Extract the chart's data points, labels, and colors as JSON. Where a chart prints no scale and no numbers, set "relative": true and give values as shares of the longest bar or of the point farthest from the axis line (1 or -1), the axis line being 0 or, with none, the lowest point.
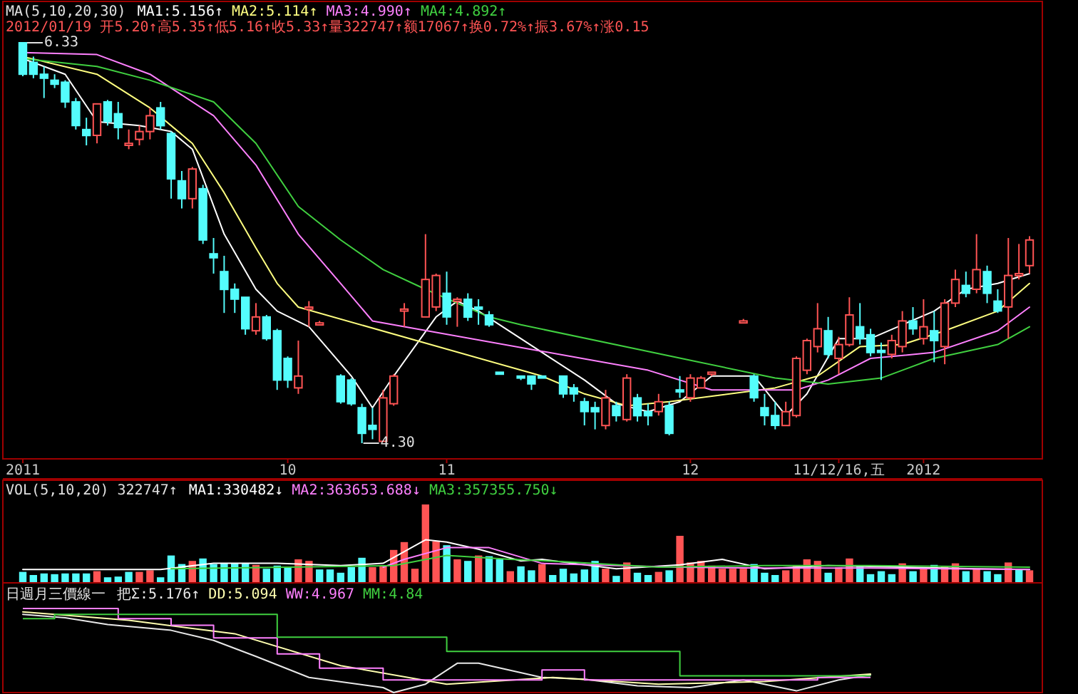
{
  "chart_data": [
    {
      "type": "candlestick",
      "subtitle": "2012/01/19 开5.20↑高5.35↑低5.16↑收5.33↑量322747↑额17067↑换0.72%↑振3.67%↑涨0.15",
      "legend_title": "MA(5,10,20,30)",
      "legend": "top left",
      "tick_labels": "x",
      "categories": [
        "2011",
        null,
        null,
        null,
        null,
        null,
        null,
        null,
        null,
        null,
        null,
        null,
        null,
        null,
        null,
        null,
        null,
        null,
        null,
        null,
        null,
        null,
        null,
        null,
        null,
        "10",
        null,
        null,
        null,
        null,
        null,
        null,
        null,
        null,
        null,
        null,
        null,
        null,
        null,
        null,
        "11",
        null,
        null,
        null,
        null,
        null,
        null,
        null,
        null,
        null,
        null,
        null,
        null,
        null,
        null,
        null,
        null,
        null,
        null,
        null,
        null,
        null,
        null,
        "12",
        null,
        null,
        null,
        null,
        null,
        null,
        null,
        null,
        null,
        null,
        null,
        null,
        null,
        "11/12/16,五",
        null,
        null,
        null,
        null,
        null,
        null,
        null,
        "2012",
        null,
        null,
        null,
        null,
        null,
        null,
        null,
        null,
        null,
        null
      ],
      "ohlc": [
        [
          6.33,
          6.33,
          6.16,
          6.17
        ],
        [
          6.23,
          6.26,
          6.15,
          6.17
        ],
        [
          6.17,
          6.21,
          6.05,
          6.15
        ],
        [
          6.14,
          6.17,
          6.1,
          6.12
        ],
        [
          6.13,
          6.14,
          6.0,
          6.03
        ],
        [
          6.03,
          6.05,
          5.89,
          5.91
        ],
        [
          5.89,
          5.95,
          5.81,
          5.86
        ],
        [
          5.86,
          6.02,
          5.82,
          6.02
        ],
        [
          6.03,
          6.04,
          5.91,
          5.93
        ],
        [
          5.97,
          6.03,
          5.84,
          5.9
        ],
        [
          5.81,
          5.89,
          5.79,
          5.82
        ],
        [
          5.84,
          5.91,
          5.81,
          5.88
        ],
        [
          5.88,
          6.0,
          5.84,
          5.96
        ],
        [
          6.0,
          6.03,
          5.89,
          5.91
        ],
        [
          5.87,
          5.88,
          5.54,
          5.64
        ],
        [
          5.63,
          5.68,
          5.49,
          5.54
        ],
        [
          5.54,
          5.7,
          5.49,
          5.69
        ],
        [
          5.59,
          5.61,
          5.31,
          5.33
        ],
        [
          5.26,
          5.34,
          5.16,
          5.24
        ],
        [
          5.17,
          5.25,
          4.96,
          5.08
        ],
        [
          5.08,
          5.11,
          4.96,
          5.03
        ],
        [
          5.04,
          5.04,
          4.85,
          4.88
        ],
        [
          4.87,
          5.01,
          4.85,
          4.94
        ],
        [
          4.94,
          4.95,
          4.82,
          4.83
        ],
        [
          4.87,
          4.88,
          4.57,
          4.62
        ],
        [
          4.73,
          4.74,
          4.58,
          4.62
        ],
        [
          4.58,
          4.82,
          4.55,
          4.64
        ],
        [
          4.98,
          5.02,
          4.89,
          4.99
        ],
        [
          4.9,
          4.92,
          4.9,
          4.91
        ],
        null,
        [
          4.64,
          4.65,
          4.5,
          4.51
        ],
        [
          4.62,
          4.63,
          4.49,
          4.5
        ],
        [
          4.48,
          4.5,
          4.3,
          4.35
        ],
        [
          4.39,
          4.48,
          4.32,
          4.37
        ],
        [
          4.31,
          4.57,
          4.31,
          4.53
        ],
        [
          4.5,
          4.65,
          4.49,
          4.64
        ],
        [
          4.97,
          5.01,
          4.89,
          4.98
        ],
        null,
        [
          4.94,
          5.36,
          4.94,
          5.13
        ],
        [
          4.99,
          5.16,
          4.97,
          5.15
        ],
        [
          5.06,
          5.17,
          4.9,
          4.94
        ],
        [
          5.02,
          5.04,
          4.89,
          5.03
        ],
        [
          5.03,
          5.06,
          4.92,
          4.94
        ],
        [
          4.99,
          5.03,
          4.9,
          4.98
        ],
        [
          4.95,
          4.97,
          4.89,
          4.9
        ],
        [
          4.66,
          4.66,
          4.65,
          4.65
        ],
        null,
        [
          4.64,
          4.64,
          4.62,
          4.63
        ],
        [
          4.64,
          4.64,
          4.57,
          4.6
        ],
        [
          4.64,
          4.64,
          4.63,
          4.63
        ],
        null,
        [
          4.64,
          4.64,
          4.53,
          4.55
        ],
        [
          4.58,
          4.6,
          4.51,
          4.55
        ],
        [
          4.51,
          4.53,
          4.39,
          4.46
        ],
        [
          4.48,
          4.51,
          4.37,
          4.46
        ],
        [
          4.39,
          4.57,
          4.37,
          4.53
        ],
        [
          4.49,
          4.51,
          4.41,
          4.44
        ],
        [
          4.42,
          4.65,
          4.41,
          4.63
        ],
        [
          4.53,
          4.55,
          4.41,
          4.44
        ],
        [
          4.46,
          4.5,
          4.39,
          4.44
        ],
        [
          4.46,
          4.55,
          4.44,
          4.51
        ],
        [
          4.49,
          4.51,
          4.34,
          4.35
        ],
        [
          4.57,
          4.64,
          4.53,
          4.56
        ],
        [
          4.53,
          4.65,
          4.51,
          4.63
        ],
        [
          4.58,
          4.64,
          4.58,
          4.63
        ],
        [
          4.65,
          4.66,
          4.64,
          4.66
        ],
        null,
        null,
        [
          4.91,
          4.93,
          4.91,
          4.92
        ],
        [
          4.64,
          4.65,
          4.51,
          4.53
        ],
        [
          4.48,
          4.55,
          4.39,
          4.44
        ],
        [
          4.44,
          4.51,
          4.37,
          4.39
        ],
        [
          4.39,
          4.51,
          4.39,
          4.46
        ],
        [
          4.44,
          4.74,
          4.43,
          4.73
        ],
        [
          4.67,
          4.83,
          4.65,
          4.82
        ],
        [
          4.79,
          5.01,
          4.76,
          4.88
        ],
        [
          4.87,
          4.94,
          4.73,
          4.75
        ],
        [
          4.73,
          4.84,
          4.65,
          4.8
        ],
        [
          4.8,
          5.04,
          4.79,
          4.95
        ],
        [
          4.89,
          5.01,
          4.8,
          4.83
        ],
        [
          4.85,
          4.88,
          4.74,
          4.76
        ],
        [
          4.77,
          4.81,
          4.62,
          4.76
        ],
        [
          4.75,
          4.85,
          4.73,
          4.82
        ],
        [
          4.79,
          4.97,
          4.76,
          4.92
        ],
        [
          4.92,
          4.99,
          4.85,
          4.88
        ],
        [
          4.83,
          5.03,
          4.8,
          4.89
        ],
        [
          4.87,
          4.97,
          4.71,
          4.82
        ],
        [
          4.79,
          5.03,
          4.7,
          5.01
        ],
        [
          5.01,
          5.18,
          4.99,
          5.13
        ],
        [
          5.1,
          5.17,
          5.04,
          5.06
        ],
        [
          5.08,
          5.36,
          5.06,
          5.18
        ],
        [
          5.17,
          5.2,
          5.01,
          5.06
        ],
        [
          5.02,
          5.08,
          4.96,
          4.97
        ],
        [
          4.99,
          5.34,
          4.83,
          5.15
        ],
        [
          5.15,
          5.31,
          5.13,
          5.16
        ],
        [
          5.2,
          5.35,
          5.16,
          5.33
        ]
      ],
      "colors": [
        "#54fcfc",
        "#54fcfc",
        "#54fcfc",
        "#54fcfc",
        "#54fcfc",
        "#54fcfc",
        "#54fcfc",
        "#ff5454",
        "#54fcfc",
        "#54fcfc",
        "#ff5454",
        "#ff5454",
        "#ff5454",
        "#54fcfc",
        "#54fcfc",
        "#54fcfc",
        "#ff5454",
        "#54fcfc",
        "#54fcfc",
        "#54fcfc",
        "#54fcfc",
        "#54fcfc",
        "#ff5454",
        "#54fcfc",
        "#54fcfc",
        "#54fcfc",
        "#ff5454",
        "#ff5454",
        "#ff5454",
        null,
        "#54fcfc",
        "#54fcfc",
        "#54fcfc",
        "#54fcfc",
        "#ff5454",
        "#ff5454",
        "#ff5454",
        null,
        "#ff5454",
        "#ff5454",
        "#54fcfc",
        "#ff5454",
        "#54fcfc",
        "#54fcfc",
        "#54fcfc",
        "#54fcfc",
        null,
        "#54fcfc",
        "#54fcfc",
        "#54fcfc",
        null,
        "#54fcfc",
        "#54fcfc",
        "#54fcfc",
        "#54fcfc",
        "#ff5454",
        "#54fcfc",
        "#ff5454",
        "#54fcfc",
        "#54fcfc",
        "#ff5454",
        "#54fcfc",
        "#54fcfc",
        "#ff5454",
        "#ff5454",
        "#ff5454",
        null,
        null,
        "#ff5454",
        "#54fcfc",
        "#54fcfc",
        "#54fcfc",
        "#ff5454",
        "#ff5454",
        "#ff5454",
        "#ff5454",
        "#54fcfc",
        "#ff5454",
        "#ff5454",
        "#54fcfc",
        "#54fcfc",
        "#54fcfc",
        "#ff5454",
        "#ff5454",
        "#54fcfc",
        "#ff5454",
        "#54fcfc",
        "#ff5454",
        "#ff5454",
        "#54fcfc",
        "#ff5454",
        "#54fcfc",
        "#54fcfc",
        "#ff5454",
        "#ff5454",
        "#ff5454"
      ],
      "series": [
        {
          "type": "line",
          "name": "MA1:5.156↑",
          "color": "#ffffff",
          "values": [
            6.25,
            null,
            null,
            null,
            6.17,
            null,
            null,
            5.93,
            null,
            null,
            null,
            5.91,
            null,
            null,
            5.88,
            null,
            5.79,
            null,
            null,
            5.36,
            null,
            null,
            5.08,
            null,
            4.97,
            null,
            null,
            4.89,
            null,
            null,
            null,
            4.64,
            null,
            4.48,
            null,
            4.64,
            null,
            null,
            null,
            4.94,
            null,
            5.02,
            null,
            4.97,
            null,
            4.9,
            null,
            null,
            null,
            null,
            null,
            null,
            null,
            4.62,
            null,
            null,
            4.5,
            null,
            null,
            4.46,
            null,
            null,
            4.51,
            null,
            null,
            4.64,
            null,
            null,
            null,
            4.64,
            null,
            null,
            4.44,
            null,
            4.55,
            null,
            null,
            4.83,
            null,
            null,
            4.83,
            null,
            null,
            4.9,
            null,
            null,
            4.97,
            null,
            null,
            5.08,
            null,
            null,
            5.11,
            null,
            null,
            5.16
          ]
        },
        {
          "type": "line",
          "name": "MA2:5.114↑",
          "color": "#ffff80",
          "values": [
            6.26,
            null,
            null,
            null,
            null,
            null,
            null,
            6.17,
            null,
            null,
            null,
            null,
            6.0,
            null,
            null,
            null,
            5.82,
            null,
            null,
            5.57,
            null,
            null,
            5.29,
            null,
            5.11,
            null,
            4.99,
            null,
            null,
            null,
            null,
            null,
            null,
            null,
            null,
            null,
            null,
            null,
            null,
            null,
            null,
            null,
            null,
            null,
            null,
            null,
            null,
            null,
            null,
            4.64,
            null,
            null,
            null,
            4.55,
            null,
            null,
            null,
            4.49,
            null,
            null,
            null,
            4.51,
            null,
            null,
            null,
            null,
            null,
            null,
            null,
            null,
            null,
            4.58,
            null,
            null,
            null,
            4.64,
            null,
            null,
            null,
            4.79,
            null,
            null,
            null,
            4.8,
            null,
            null,
            null,
            4.87,
            null,
            null,
            null,
            null,
            4.97,
            null,
            null,
            5.11
          ]
        },
        {
          "type": "line",
          "name": "MA3:4.990↑",
          "color": "#ff80ff",
          "values": [
            6.28,
            null,
            null,
            null,
            null,
            null,
            null,
            6.27,
            null,
            null,
            null,
            null,
            6.17,
            null,
            null,
            null,
            null,
            null,
            5.96,
            null,
            null,
            null,
            5.71,
            null,
            null,
            null,
            5.36,
            null,
            null,
            null,
            5.11,
            null,
            null,
            4.92,
            null,
            null,
            null,
            null,
            null,
            null,
            null,
            null,
            null,
            null,
            null,
            null,
            null,
            null,
            null,
            null,
            null,
            null,
            null,
            null,
            null,
            null,
            null,
            null,
            null,
            4.67,
            null,
            null,
            null,
            null,
            null,
            4.57,
            null,
            null,
            null,
            4.57,
            null,
            null,
            null,
            4.57,
            null,
            null,
            4.62,
            null,
            null,
            null,
            4.73,
            null,
            null,
            null,
            null,
            null,
            4.76,
            null,
            null,
            null,
            null,
            null,
            4.87,
            null,
            null,
            4.99
          ]
        },
        {
          "type": "line",
          "name": "MA4:4.892↑",
          "color": "#40d040",
          "values": [
            6.25,
            null,
            null,
            null,
            null,
            null,
            null,
            6.21,
            null,
            null,
            null,
            null,
            6.14,
            null,
            null,
            null,
            null,
            null,
            6.03,
            null,
            null,
            null,
            5.82,
            null,
            null,
            null,
            5.5,
            null,
            null,
            null,
            5.33,
            null,
            null,
            null,
            5.18,
            null,
            null,
            null,
            5.08,
            null,
            null,
            null,
            null,
            null,
            4.94,
            null,
            null,
            4.9,
            null,
            null,
            null,
            null,
            null,
            null,
            null,
            null,
            null,
            null,
            null,
            null,
            null,
            null,
            null,
            null,
            null,
            null,
            null,
            null,
            null,
            null,
            null,
            4.63,
            null,
            null,
            null,
            null,
            4.6,
            null,
            null,
            null,
            null,
            4.63,
            null,
            null,
            null,
            null,
            4.73,
            null,
            null,
            null,
            null,
            null,
            4.8,
            null,
            null,
            4.89
          ]
        }
      ],
      "annotations": [
        "6.33",
        "4.30"
      ]
    },
    {
      "type": "bar",
      "relative": true,
      "legend_title": "VOL(5,10,20) 322747↑",
      "legend": "top left",
      "tick_labels": false,
      "categories": [
        null,
        null,
        null,
        null,
        null,
        null,
        null,
        null,
        null,
        null,
        null,
        null,
        null,
        null,
        null,
        null,
        null,
        null,
        null,
        null,
        null,
        null,
        null,
        null,
        null,
        null,
        null,
        null,
        null,
        null,
        null,
        null,
        null,
        null,
        null,
        null,
        null,
        null,
        null,
        null,
        null,
        null,
        null,
        null,
        null,
        null,
        null,
        null,
        null,
        null,
        null,
        null,
        null,
        null,
        null,
        null,
        null,
        null,
        null,
        null,
        null,
        null,
        null,
        null,
        null,
        null,
        null,
        null,
        null,
        null,
        null,
        null,
        null,
        null,
        null,
        null,
        null,
        null,
        null,
        null,
        null,
        null,
        null,
        null,
        null,
        null,
        null,
        null,
        null,
        null,
        null,
        null,
        null,
        null,
        null,
        null
      ],
      "series": [
        {
          "type": "bar",
          "values": [
            0.14,
            0.1,
            0.12,
            0.11,
            0.12,
            0.12,
            0.12,
            0.15,
            0.07,
            0.08,
            0.14,
            0.14,
            0.16,
            0.07,
            0.35,
            0.24,
            0.28,
            0.31,
            0.24,
            0.25,
            0.25,
            0.25,
            0.23,
            0.18,
            0.22,
            0.2,
            0.3,
            0.28,
            0.17,
            0.17,
            0.13,
            0.2,
            0.32,
            0.2,
            0.22,
            0.42,
            0.52,
            0.18,
            1,
            0.53,
            0.48,
            0.3,
            0.28,
            0.35,
            0.34,
            0.3,
            0.15,
            0.21,
            0.16,
            0.24,
            0.1,
            0.18,
            0.12,
            0.17,
            0.28,
            0.18,
            0.09,
            0.26,
            0.13,
            0.1,
            0.14,
            0.16,
            0.6,
            0.26,
            0.28,
            0.22,
            0.18,
            0.18,
            0.18,
            0.24,
            0.13,
            0.1,
            0.16,
            0.22,
            0.3,
            0.28,
            0.13,
            0.2,
            0.31,
            0.21,
            0.11,
            0.15,
            0.11,
            0.25,
            0.15,
            0.18,
            0.23,
            0.21,
            0.25,
            0.15,
            0.18,
            0.15,
            0.11,
            0.26,
            0.17,
            0.16
          ],
          "colors": [
            "#54fcfc",
            "#54fcfc",
            "#54fcfc",
            "#54fcfc",
            "#54fcfc",
            "#54fcfc",
            "#54fcfc",
            "#ff5454",
            "#54fcfc",
            "#54fcfc",
            "#54fcfc",
            "#ff5454",
            "#ff5454",
            "#54fcfc",
            "#54fcfc",
            "#54fcfc",
            "#ff5454",
            "#54fcfc",
            "#54fcfc",
            "#54fcfc",
            "#54fcfc",
            "#54fcfc",
            "#ff5454",
            "#54fcfc",
            "#54fcfc",
            "#54fcfc",
            "#ff5454",
            "#ff5454",
            "#54fcfc",
            "#54fcfc",
            "#54fcfc",
            "#54fcfc",
            "#54fcfc",
            "#ff5454",
            "#ff5454",
            "#ff5454",
            "#ff5454",
            "#ff5454",
            "#ff5454",
            "#ff5454",
            "#54fcfc",
            "#ff5454",
            "#54fcfc",
            "#ff5454",
            "#54fcfc",
            "#54fcfc",
            "#ff5454",
            "#54fcfc",
            "#54fcfc",
            "#ff5454",
            "#54fcfc",
            "#54fcfc",
            "#54fcfc",
            "#54fcfc",
            "#54fcfc",
            "#ff5454",
            "#54fcfc",
            "#ff5454",
            "#54fcfc",
            "#54fcfc",
            "#ff5454",
            "#54fcfc",
            "#ff5454",
            "#ff5454",
            "#ff5454",
            "#ff5454",
            "#ff5454",
            "#ff5454",
            "#ff5454",
            "#54fcfc",
            "#54fcfc",
            "#54fcfc",
            "#ff5454",
            "#ff5454",
            "#ff5454",
            "#ff5454",
            "#54fcfc",
            "#ff5454",
            "#ff5454",
            "#54fcfc",
            "#54fcfc",
            "#54fcfc",
            "#54fcfc",
            "#ff5454",
            "#54fcfc",
            "#ff5454",
            "#54fcfc",
            "#ff5454",
            "#ff5454",
            "#54fcfc",
            "#ff5454",
            "#54fcfc",
            "#54fcfc",
            "#ff5454",
            "#54fcfc",
            "#ff5454"
          ]
        },
        {
          "type": "line",
          "name": "MA1:330482↓",
          "color": "#ffffff",
          "values": [
            0.17,
            null,
            null,
            null,
            null,
            null,
            0.17,
            null,
            null,
            null,
            null,
            null,
            null,
            0.17,
            null,
            null,
            null,
            null,
            0.25,
            null,
            null,
            null,
            null,
            null,
            0.25,
            null,
            null,
            null,
            null,
            null,
            0.22,
            null,
            null,
            null,
            0.25,
            null,
            null,
            null,
            0.55,
            null,
            0.52,
            null,
            null,
            0.43,
            null,
            null,
            null,
            0.28,
            null,
            0.3,
            null,
            null,
            null,
            null,
            null,
            null,
            0.18,
            null,
            null,
            null,
            null,
            null,
            0.23,
            null,
            null,
            null,
            0.3,
            null,
            null,
            null,
            0.18,
            null,
            null,
            null,
            null,
            null,
            0.22,
            null,
            null,
            null,
            null,
            null,
            null,
            0.2,
            null,
            null,
            null,
            null,
            null,
            null,
            0.18,
            null,
            null,
            null,
            null,
            0.17
          ]
        },
        {
          "type": "line",
          "name": "MA2:363653.688↓",
          "color": "#ff80ff",
          "values": [
            null,
            null,
            null,
            null,
            null,
            null,
            null,
            null,
            null,
            null,
            null,
            null,
            null,
            null,
            null,
            null,
            null,
            null,
            null,
            null,
            null,
            null,
            null,
            null,
            null,
            null,
            null,
            null,
            null,
            null,
            null,
            null,
            null,
            null,
            0.2,
            null,
            0.3,
            null,
            null,
            null,
            0.45,
            null,
            null,
            null,
            0.45,
            null,
            null,
            null,
            null,
            0.25,
            null,
            null,
            null,
            null,
            null,
            null,
            0.22,
            null,
            null,
            null,
            null,
            null,
            0.2,
            null,
            null,
            null,
            null,
            null,
            null,
            null,
            0.19,
            null,
            null,
            null,
            null,
            null,
            null,
            null,
            null,
            null,
            0.19,
            null,
            null,
            null,
            null,
            null,
            null,
            null,
            null,
            null,
            null,
            null,
            null,
            null,
            null,
            0.17
          ]
        },
        {
          "type": "line",
          "name": "MA3:357355.750↓",
          "color": "#40d040",
          "values": [
            null,
            null,
            null,
            null,
            null,
            null,
            null,
            null,
            null,
            null,
            null,
            null,
            null,
            null,
            0.18,
            null,
            null,
            null,
            null,
            null,
            null,
            null,
            null,
            null,
            null,
            0.2,
            null,
            null,
            null,
            null,
            null,
            null,
            null,
            null,
            null,
            0.22,
            null,
            null,
            null,
            null,
            0.35,
            null,
            null,
            null,
            null,
            null,
            0.3,
            null,
            null,
            null,
            null,
            0.27,
            null,
            null,
            null,
            null,
            null,
            null,
            null,
            null,
            0.2,
            null,
            null,
            null,
            null,
            null,
            null,
            null,
            null,
            null,
            0.22,
            null,
            null,
            null,
            null,
            null,
            null,
            null,
            null,
            null,
            0.22,
            null,
            null,
            null,
            null,
            null,
            null,
            null,
            null,
            null,
            null,
            null,
            null,
            null,
            null,
            0.2
          ]
        }
      ]
    },
    {
      "type": "line",
      "relative": true,
      "legend_title": "日週月三價線一",
      "legend": "top left",
      "tick_labels": false,
      "categories": [
        null,
        null,
        null,
        null,
        null,
        null,
        null,
        null,
        null,
        null,
        null,
        null,
        null,
        null,
        null,
        null,
        null,
        null,
        null,
        null,
        null,
        null,
        null,
        null,
        null,
        null,
        null,
        null,
        null,
        null,
        null,
        null,
        null,
        null,
        null,
        null,
        null,
        null,
        null,
        null,
        null,
        null,
        null,
        null,
        null,
        null,
        null,
        null,
        null,
        null,
        null,
        null,
        null,
        null,
        null,
        null,
        null,
        null,
        null,
        null,
        null,
        null,
        null,
        null,
        null,
        null,
        null,
        null,
        null,
        null,
        null,
        null,
        null,
        null,
        null,
        null,
        null,
        null,
        null,
        null,
        null,
        null,
        null,
        null,
        null,
        null,
        null,
        null,
        null,
        null,
        null,
        null,
        null,
        null,
        null,
        null
      ],
      "series": [
        {
          "type": "line",
          "name": "把Σ:5.176↑",
          "color": "#e8e8e8",
          "values": [
            0.93,
            null,
            null,
            null,
            0.89,
            null,
            null,
            null,
            0.81,
            null,
            null,
            null,
            null,
            null,
            0.74,
            null,
            null,
            null,
            0.62,
            null,
            null,
            null,
            0.43,
            null,
            null,
            null,
            null,
            0.18,
            null,
            null,
            null,
            null,
            null,
            null,
            0.06,
            0,
            null,
            null,
            0.1,
            null,
            null,
            0.35,
            null,
            0.35,
            null,
            null,
            null,
            null,
            null,
            0.18,
            null,
            null,
            null,
            0.16,
            null,
            null,
            null,
            null,
            0.08,
            null,
            null,
            null,
            null,
            0.06,
            null,
            null,
            null,
            null,
            0.15,
            null,
            null,
            null,
            null,
            0.02,
            null,
            null,
            null,
            0.15,
            null,
            null,
            0.21,
            null,
            null,
            null,
            null,
            null,
            null,
            null,
            null,
            null,
            null,
            null,
            null,
            null,
            null,
            null
          ]
        },
        {
          "type": "line",
          "name": "DD:5.094",
          "color": "#ffffb0",
          "values": [
            0.96,
            null,
            null,
            null,
            null,
            null,
            null,
            null,
            null,
            null,
            0.86,
            null,
            null,
            null,
            null,
            null,
            null,
            null,
            null,
            null,
            0.7,
            null,
            null,
            null,
            null,
            null,
            null,
            null,
            null,
            null,
            0.32,
            null,
            null,
            null,
            null,
            null,
            null,
            null,
            null,
            null,
            0.1,
            null,
            null,
            null,
            null,
            null,
            null,
            null,
            null,
            null,
            0.18,
            null,
            null,
            null,
            null,
            null,
            null,
            null,
            null,
            null,
            0.1,
            null,
            null,
            null,
            null,
            null,
            null,
            null,
            null,
            null,
            0.13,
            null,
            null,
            null,
            null,
            null,
            null,
            null,
            null,
            null,
            0.22,
            null,
            null,
            null,
            null,
            null,
            null,
            null,
            null,
            null,
            null,
            null,
            null,
            null,
            null,
            null
          ]
        },
        {
          "type": "step",
          "name": "WW:4.967",
          "color": "#ff80ff",
          "values": [
            1.0,
            null,
            null,
            null,
            null,
            null,
            null,
            null,
            null,
            0.88,
            null,
            null,
            null,
            null,
            0.8,
            null,
            null,
            null,
            0.65,
            null,
            null,
            null,
            null,
            null,
            0.46,
            null,
            null,
            null,
            0.29,
            null,
            null,
            null,
            null,
            null,
            0.15,
            null,
            null,
            null,
            null,
            null,
            null,
            null,
            null,
            null,
            null,
            null,
            null,
            null,
            null,
            0.27,
            null,
            null,
            null,
            0.15,
            null,
            null,
            null,
            null,
            null,
            null,
            null,
            null,
            null,
            null,
            null,
            null,
            null,
            null,
            null,
            null,
            null,
            null,
            null,
            null,
            null,
            0.18,
            null,
            null,
            null,
            null,
            0.18,
            null,
            null,
            null,
            null,
            null,
            null,
            null,
            null,
            null,
            null,
            null,
            null,
            null,
            null,
            null
          ]
        },
        {
          "type": "step",
          "name": "MM:4.84",
          "color": "#40d040",
          "values": [
            0.88,
            null,
            null,
            0.93,
            null,
            null,
            null,
            null,
            null,
            null,
            null,
            null,
            null,
            null,
            null,
            null,
            null,
            null,
            null,
            null,
            null,
            null,
            null,
            null,
            0.66,
            null,
            null,
            null,
            null,
            null,
            null,
            null,
            null,
            null,
            null,
            null,
            null,
            null,
            null,
            null,
            0.49,
            null,
            null,
            null,
            null,
            null,
            null,
            null,
            null,
            null,
            null,
            null,
            null,
            null,
            null,
            null,
            null,
            null,
            null,
            null,
            null,
            null,
            0.2,
            null,
            null,
            null,
            null,
            null,
            null,
            null,
            null,
            null,
            null,
            null,
            null,
            null,
            null,
            null,
            null,
            null,
            0.2,
            null,
            null,
            null,
            null,
            null,
            null,
            null,
            null,
            null,
            null,
            null,
            null,
            null,
            null,
            null
          ]
        }
      ]
    }
  ]
}
